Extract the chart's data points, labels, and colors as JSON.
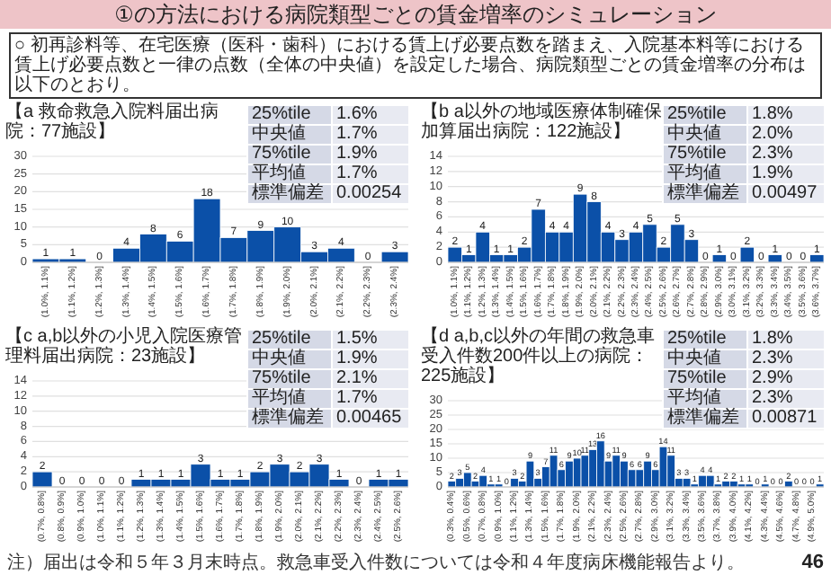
{
  "chart_data": [
    {
      "type": "other",
      "title": "①の方法における病院類型ごとの賃金増率のシミュレーション",
      "annotations": [
        "○ 初再診料等、在宅医療（医科・歯科）における賃上げ必要点数を踏まえ、入院基本料等における賃上げ必要点数と一律の点数（全体の中央値）を設定した場合、病院類型ごとの賃金増率の分布は以下のとおり。",
        "注）届出は令和５年３月末時点。救急車受入件数については令和４年度病床機能報告より。",
        "46"
      ]
    },
    {
      "type": "bar",
      "title": "【a 救命救急入院料届出病院：77施設】",
      "color": "#0b50a8",
      "grid": "y",
      "data_labels": true,
      "ylim": [
        0,
        30
      ],
      "yticks": [
        0,
        5,
        10,
        15,
        20,
        25,
        30
      ],
      "categories": [
        "(1.0%, 1.1%]",
        "(1.1%, 1.2%]",
        "(1.2%, 1.3%]",
        "(1.3%, 1.4%]",
        "(1.4%, 1.5%]",
        "(1.5%, 1.6%]",
        "(1.6%, 1.7%]",
        "(1.7%, 1.8%]",
        "(1.8%, 1.9%]",
        "(1.9%, 2.0%]",
        "(2.0%, 2.1%]",
        "(2.1%, 2.2%]",
        "(2.2%, 2.3%]",
        "(2.3%, 2.4%]"
      ],
      "values": [
        1,
        1,
        0,
        4,
        8,
        6,
        18,
        7,
        9,
        10,
        3,
        4,
        0,
        3
      ],
      "annotations": [
        "25%tile",
        "1.6%",
        "中央値",
        "1.7%",
        "75%tile",
        "1.9%",
        "平均値",
        "1.7%",
        "標準偏差",
        "0.00254"
      ]
    },
    {
      "type": "bar",
      "title": "【b a以外の地域医療体制確保加算届出病院：122施設】",
      "color": "#0b50a8",
      "grid": "y",
      "data_labels": true,
      "ylim": [
        0,
        14
      ],
      "yticks": [
        0,
        2,
        4,
        6,
        8,
        10,
        12,
        14
      ],
      "categories": [
        "(1.0%, 1.1%]",
        "(1.1%, 1.2%]",
        "(1.2%, 1.3%]",
        "(1.3%, 1.4%]",
        "(1.4%, 1.5%]",
        "(1.5%, 1.6%]",
        "(1.6%, 1.7%]",
        "(1.7%, 1.8%]",
        "(1.8%, 1.9%]",
        "(1.9%, 2.0%]",
        "(2.0%, 2.1%]",
        "(2.1%, 2.2%]",
        "(2.2%, 2.3%]",
        "(2.3%, 2.4%]",
        "(2.4%, 2.5%]",
        "(2.5%, 2.6%]",
        "(2.6%, 2.7%]",
        "(2.7%, 2.8%]",
        "(2.8%, 2.9%]",
        "(2.9%, 3.0%]",
        "(3.0%, 3.1%]",
        "(3.1%, 3.2%]",
        "(3.2%, 3.3%]",
        "(3.3%, 3.4%]",
        "(3.4%, 3.5%]",
        "(3.5%, 3.6%]",
        "(3.6%, 3.7%]"
      ],
      "values": [
        2,
        1,
        4,
        1,
        1,
        2,
        7,
        4,
        4,
        9,
        8,
        4,
        3,
        4,
        5,
        2,
        5,
        3,
        0,
        1,
        0,
        2,
        0,
        1,
        0,
        0,
        1
      ],
      "annotations": [
        "25%tile",
        "1.8%",
        "中央値",
        "2.0%",
        "75%tile",
        "2.3%",
        "平均値",
        "1.9%",
        "標準偏差",
        "0.00497"
      ]
    },
    {
      "type": "bar",
      "title": "【c a,b以外の小児入院医療管理料届出病院：23施設】",
      "color": "#0b50a8",
      "grid": "y",
      "data_labels": true,
      "ylim": [
        0,
        14
      ],
      "yticks": [
        0,
        2,
        4,
        6,
        8,
        10,
        12,
        14
      ],
      "categories": [
        "(0.7%, 0.8%]",
        "(0.8%, 0.9%]",
        "(0.9%, 1.0%]",
        "(1.0%, 1.1%]",
        "(1.1%, 1.2%]",
        "(1.2%, 1.3%]",
        "(1.3%, 1.4%]",
        "(1.4%, 1.5%]",
        "(1.5%, 1.6%]",
        "(1.6%, 1.7%]",
        "(1.7%, 1.8%]",
        "(1.8%, 1.9%]",
        "(1.9%, 2.0%]",
        "(2.0%, 2.1%]",
        "(2.1%, 2.2%]",
        "(2.2%, 2.3%]",
        "(2.3%, 2.4%]",
        "(2.4%, 2.5%]",
        "(2.5%, 2.6%]"
      ],
      "values": [
        2,
        0,
        0,
        0,
        0,
        1,
        1,
        1,
        3,
        1,
        1,
        2,
        3,
        2,
        3,
        1,
        0,
        1,
        1
      ],
      "annotations": [
        "25%tile",
        "1.5%",
        "中央値",
        "1.9%",
        "75%tile",
        "2.1%",
        "平均値",
        "1.7%",
        "標準偏差",
        "0.00465"
      ]
    },
    {
      "type": "bar",
      "title": "【d a,b,c以外の年間の救急車受入件数200件以上の病院：225施設】",
      "color": "#0b50a8",
      "grid": "y",
      "data_labels": true,
      "ylim": [
        0,
        30
      ],
      "yticks": [
        0,
        5,
        10,
        15,
        20,
        25,
        30
      ],
      "categories": [
        "(0.3%, 0.4%]",
        null,
        "(0.5%, 0.6%]",
        null,
        "(0.7%, 0.8%]",
        null,
        "(0.9%, 1.0%]",
        null,
        "(1.1%, 1.2%]",
        null,
        "(1.3%, 1.4%]",
        null,
        "(1.5%, 1.6%]",
        null,
        "(1.7%, 1.8%]",
        null,
        "(1.9%, 2.0%]",
        null,
        "(2.1%, 2.2%]",
        null,
        "(2.3%, 2.4%]",
        null,
        "(2.5%, 2.6%]",
        null,
        "(2.7%, 2.8%]",
        null,
        "(2.9%, 3.0%]",
        null,
        "(3.1%, 3.2%]",
        null,
        "(3.3%, 3.4%]",
        null,
        "(3.5%, 3.6%]",
        null,
        "(3.7%, 3.8%]",
        null,
        "(3.9%, 4.0%]",
        null,
        "(4.1%, 4.2%]",
        null,
        "(4.3%, 4.4%]",
        null,
        "(4.5%, 4.6%]",
        null,
        "(4.7%, 4.8%]",
        null,
        "(4.9%, 5.0%]",
        null
      ],
      "values": [
        2,
        3,
        5,
        2,
        4,
        1,
        1,
        0,
        3,
        2,
        9,
        3,
        7,
        11,
        6,
        9,
        10,
        11,
        13,
        16,
        9,
        11,
        9,
        6,
        6,
        9,
        6,
        14,
        11,
        3,
        3,
        1,
        4,
        4,
        1,
        2,
        2,
        1,
        1,
        0,
        1,
        0,
        0,
        2,
        0,
        0,
        0,
        1
      ],
      "annotations": [
        "25%tile",
        "1.8%",
        "中央値",
        "2.3%",
        "75%tile",
        "2.9%",
        "平均値",
        "2.3%",
        "標準偏差",
        "0.00871"
      ]
    }
  ]
}
